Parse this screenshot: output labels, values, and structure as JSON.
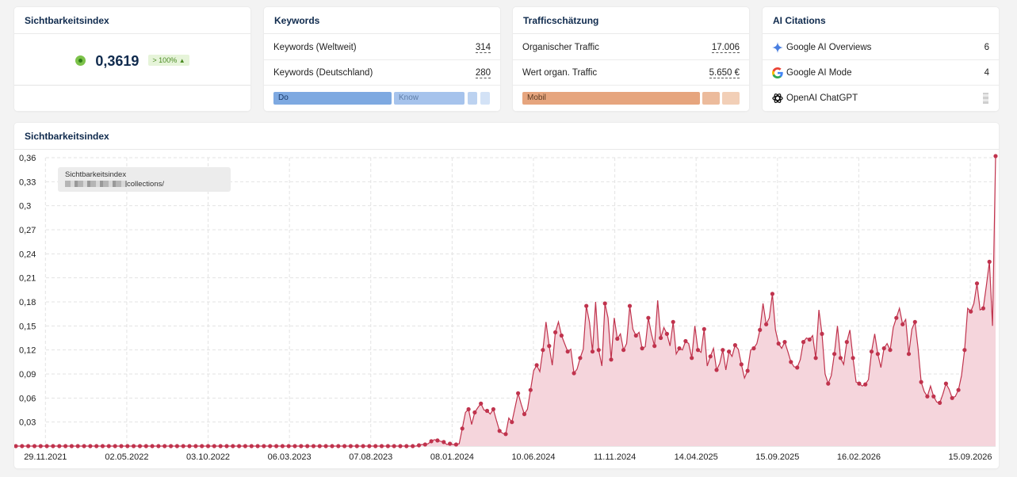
{
  "visibility_card": {
    "title": "Sichtbarkeitsindex",
    "value": "0,3619",
    "badge": "> 100%"
  },
  "keywords_card": {
    "title": "Keywords",
    "rows": [
      {
        "label": "Keywords (Weltweit)",
        "value": "314"
      },
      {
        "label": "Keywords (Deutschland)",
        "value": "280"
      }
    ],
    "segments": [
      "Do",
      "Know"
    ]
  },
  "traffic_card": {
    "title": "Trafficschätzung",
    "rows": [
      {
        "label": "Organischer Traffic",
        "value": "17.006"
      },
      {
        "label": "Wert organ. Traffic",
        "value": "5.650 €"
      }
    ],
    "segments": [
      "Mobil"
    ]
  },
  "ai_card": {
    "title": "AI Citations",
    "rows": [
      {
        "label": "Google AI Overviews",
        "value": "6",
        "icon": "gemini-sparkle-icon"
      },
      {
        "label": "Google AI Mode",
        "value": "4",
        "icon": "google-g-icon"
      },
      {
        "label": "OpenAI ChatGPT",
        "value": "",
        "icon": "openai-logo-icon"
      }
    ]
  },
  "chart_card": {
    "title": "Sichtbarkeitsindex",
    "tooltip": {
      "title": "Sichtbarkeitsindex",
      "url_suffix": "collections/"
    }
  },
  "colors": {
    "line": "#c0334d",
    "fill": "#f5d5dc",
    "do": "#7ea9e1",
    "know": "#a6c3ec",
    "mobil": "#e6a57e"
  },
  "chart_data": {
    "type": "area",
    "ylim": [
      0,
      0.37
    ],
    "yticks": [
      "0,03",
      "0,06",
      "0,09",
      "0,12",
      "0,15",
      "0,18",
      "0,21",
      "0,24",
      "0,27",
      "0,3",
      "0,33",
      "0,36"
    ],
    "xticks": [
      "29.11.2021",
      "02.05.2022",
      "03.10.2022",
      "06.03.2023",
      "07.08.2023",
      "08.01.2024",
      "10.06.2024",
      "11.11.2024",
      "14.04.2025",
      "15.09.2025",
      "16.02.2026",
      "15.09.2026"
    ],
    "x_start": "2021-10-04",
    "x_end": "2026-11-02",
    "weekly_values": [
      0,
      0,
      0,
      0,
      0,
      0,
      0,
      0,
      0,
      0,
      0,
      0,
      0,
      0,
      0,
      0,
      0,
      0,
      0,
      0,
      0,
      0,
      0,
      0,
      0,
      0,
      0,
      0,
      0,
      0,
      0,
      0,
      0,
      0,
      0,
      0,
      0,
      0,
      0,
      0,
      0,
      0,
      0,
      0,
      0,
      0,
      0,
      0,
      0,
      0,
      0,
      0,
      0,
      0,
      0,
      0,
      0,
      0,
      0,
      0,
      0,
      0,
      0,
      0,
      0,
      0,
      0,
      0,
      0,
      0,
      0,
      0,
      0,
      0,
      0,
      0,
      0,
      0,
      0,
      0,
      0,
      0,
      0,
      0,
      0,
      0,
      0,
      0,
      0,
      0,
      0,
      0,
      0,
      0,
      0,
      0,
      0,
      0,
      0,
      0,
      0,
      0,
      0,
      0,
      0,
      0,
      0,
      0,
      0,
      0,
      0,
      0,
      0,
      0,
      0,
      0,
      0,
      0,
      0,
      0,
      0,
      0,
      0,
      0,
      0,
      0,
      0,
      0,
      0,
      0,
      0.001,
      0.002,
      0.002,
      0.003,
      0.006,
      0.008,
      0.007,
      0.006,
      0.005,
      0.002,
      0.003,
      0.002,
      0.002,
      0.003,
      0.022,
      0.042,
      0.046,
      0.027,
      0.042,
      0.048,
      0.053,
      0.045,
      0.044,
      0.04,
      0.046,
      0.032,
      0.019,
      0.016,
      0.015,
      0.035,
      0.03,
      0.048,
      0.066,
      0.052,
      0.04,
      0.046,
      0.07,
      0.094,
      0.101,
      0.093,
      0.12,
      0.155,
      0.125,
      0.101,
      0.142,
      0.155,
      0.138,
      0.128,
      0.118,
      0.121,
      0.091,
      0.096,
      0.11,
      0.121,
      0.175,
      0.155,
      0.118,
      0.18,
      0.12,
      0.1,
      0.178,
      0.16,
      0.108,
      0.16,
      0.134,
      0.14,
      0.12,
      0.128,
      0.175,
      0.146,
      0.138,
      0.142,
      0.122,
      0.124,
      0.16,
      0.14,
      0.125,
      0.182,
      0.135,
      0.148,
      0.14,
      0.125,
      0.155,
      0.115,
      0.122,
      0.12,
      0.131,
      0.128,
      0.11,
      0.15,
      0.12,
      0.117,
      0.146,
      0.1,
      0.112,
      0.122,
      0.095,
      0.103,
      0.12,
      0.095,
      0.118,
      0.112,
      0.126,
      0.121,
      0.102,
      0.085,
      0.094,
      0.12,
      0.122,
      0.128,
      0.145,
      0.178,
      0.152,
      0.16,
      0.19,
      0.145,
      0.128,
      0.122,
      0.13,
      0.118,
      0.105,
      0.099,
      0.098,
      0.108,
      0.13,
      0.135,
      0.133,
      0.138,
      0.11,
      0.17,
      0.14,
      0.09,
      0.078,
      0.088,
      0.115,
      0.15,
      0.11,
      0.102,
      0.13,
      0.145,
      0.11,
      0.08,
      0.078,
      0.075,
      0.077,
      0.083,
      0.118,
      0.14,
      0.115,
      0.098,
      0.122,
      0.128,
      0.12,
      0.148,
      0.16,
      0.172,
      0.152,
      0.158,
      0.115,
      0.146,
      0.155,
      0.122,
      0.08,
      0.068,
      0.062,
      0.075,
      0.062,
      0.055,
      0.054,
      0.065,
      0.078,
      0.071,
      0.06,
      0.062,
      0.07,
      0.088,
      0.12,
      0.172,
      0.168,
      0.178,
      0.203,
      0.17,
      0.172,
      0.2,
      0.23,
      0.15,
      0.362
    ]
  }
}
